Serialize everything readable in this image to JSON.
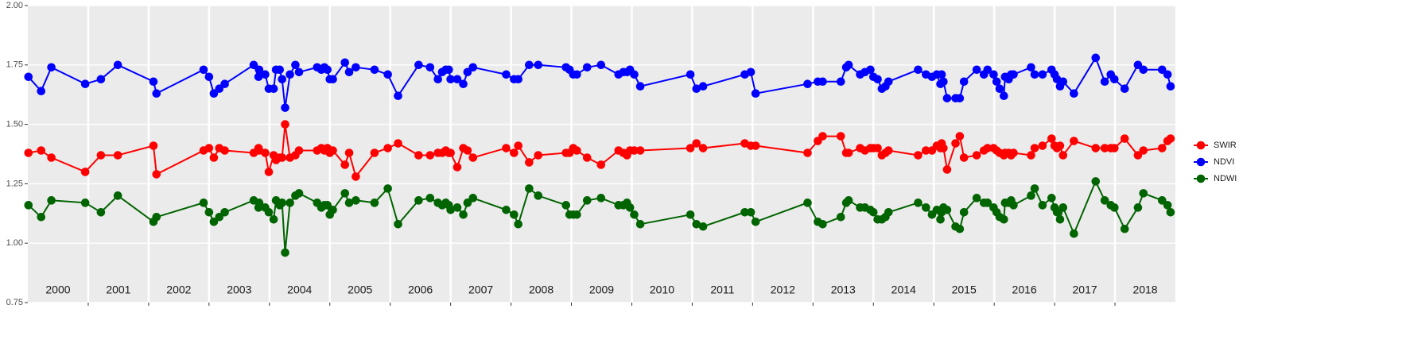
{
  "chart_data": {
    "type": "line",
    "x": [
      2000.01,
      2000.22,
      2000.39,
      2000.95,
      2001.21,
      2001.49,
      2002.08,
      2002.13,
      2002.91,
      2003.0,
      2003.08,
      2003.17,
      2003.26,
      2003.74,
      2003.82,
      2003.83,
      2003.93,
      2003.99,
      2004.07,
      2004.11,
      2004.17,
      2004.21,
      2004.26,
      2004.34,
      2004.43,
      2004.49,
      2004.79,
      2004.86,
      2004.91,
      2004.96,
      2005.0,
      2005.05,
      2005.25,
      2005.32,
      2005.43,
      2005.74,
      2005.96,
      2006.13,
      2006.47,
      2006.66,
      2006.79,
      2006.86,
      2006.92,
      2006.97,
      2007.0,
      2007.11,
      2007.21,
      2007.28,
      2007.37,
      2007.92,
      2008.05,
      2008.12,
      2008.3,
      2008.45,
      2008.91,
      2008.97,
      2009.03,
      2009.09,
      2009.26,
      2009.49,
      2009.78,
      2009.86,
      2009.92,
      2009.97,
      2010.04,
      2010.14,
      2010.97,
      2011.07,
      2011.18,
      2011.87,
      2011.97,
      2012.05,
      2012.91,
      2013.08,
      2013.16,
      2013.46,
      2013.55,
      2013.59,
      2013.78,
      2013.86,
      2013.95,
      2014.0,
      2014.07,
      2014.14,
      2014.2,
      2014.25,
      2014.74,
      2014.87,
      2014.97,
      2015.05,
      2015.11,
      2015.13,
      2015.16,
      2015.22,
      2015.36,
      2015.43,
      2015.5,
      2015.71,
      2015.83,
      2015.89,
      2015.99,
      2016.04,
      2016.09,
      2016.16,
      2016.18,
      2016.24,
      2016.28,
      2016.32,
      2016.61,
      2016.67,
      2016.8,
      2016.95,
      2017.0,
      2017.04,
      2017.09,
      2017.14,
      2017.32,
      2017.68,
      2017.83,
      2017.93,
      2017.99,
      2018.16,
      2018.38,
      2018.47,
      2018.78,
      2018.87,
      2018.92
    ],
    "series": [
      {
        "name": "SWIR",
        "color": "#ff0000",
        "values": [
          1.38,
          1.39,
          1.36,
          1.3,
          1.37,
          1.37,
          1.41,
          1.29,
          1.39,
          1.4,
          1.36,
          1.4,
          1.39,
          1.38,
          1.4,
          1.39,
          1.38,
          1.3,
          1.37,
          1.35,
          1.36,
          1.36,
          1.5,
          1.36,
          1.37,
          1.39,
          1.39,
          1.4,
          1.39,
          1.4,
          1.38,
          1.39,
          1.33,
          1.38,
          1.28,
          1.38,
          1.4,
          1.42,
          1.37,
          1.37,
          1.38,
          1.38,
          1.39,
          1.38,
          1.38,
          1.32,
          1.4,
          1.39,
          1.36,
          1.4,
          1.38,
          1.41,
          1.34,
          1.37,
          1.38,
          1.38,
          1.4,
          1.39,
          1.36,
          1.33,
          1.39,
          1.38,
          1.37,
          1.39,
          1.39,
          1.39,
          1.4,
          1.42,
          1.4,
          1.42,
          1.41,
          1.41,
          1.38,
          1.43,
          1.45,
          1.45,
          1.38,
          1.38,
          1.4,
          1.39,
          1.4,
          1.4,
          1.4,
          1.37,
          1.38,
          1.39,
          1.37,
          1.39,
          1.39,
          1.41,
          1.4,
          1.42,
          1.4,
          1.31,
          1.42,
          1.45,
          1.36,
          1.37,
          1.39,
          1.4,
          1.4,
          1.39,
          1.38,
          1.37,
          1.38,
          1.38,
          1.37,
          1.38,
          1.37,
          1.4,
          1.41,
          1.44,
          1.41,
          1.4,
          1.41,
          1.37,
          1.43,
          1.4,
          1.4,
          1.4,
          1.4,
          1.44,
          1.37,
          1.39,
          1.4,
          1.43,
          1.44
        ]
      },
      {
        "name": "NDVI",
        "color": "#0000ff",
        "values": [
          1.7,
          1.64,
          1.74,
          1.67,
          1.69,
          1.75,
          1.68,
          1.63,
          1.73,
          1.7,
          1.63,
          1.65,
          1.67,
          1.75,
          1.7,
          1.73,
          1.71,
          1.65,
          1.65,
          1.73,
          1.73,
          1.69,
          1.57,
          1.71,
          1.75,
          1.72,
          1.74,
          1.73,
          1.74,
          1.73,
          1.69,
          1.69,
          1.76,
          1.72,
          1.74,
          1.73,
          1.71,
          1.62,
          1.75,
          1.74,
          1.69,
          1.72,
          1.73,
          1.73,
          1.69,
          1.69,
          1.67,
          1.72,
          1.74,
          1.71,
          1.69,
          1.69,
          1.75,
          1.75,
          1.74,
          1.73,
          1.71,
          1.71,
          1.74,
          1.75,
          1.71,
          1.72,
          1.72,
          1.73,
          1.71,
          1.66,
          1.71,
          1.65,
          1.66,
          1.71,
          1.72,
          1.63,
          1.67,
          1.68,
          1.68,
          1.68,
          1.74,
          1.75,
          1.71,
          1.72,
          1.73,
          1.7,
          1.69,
          1.65,
          1.66,
          1.68,
          1.73,
          1.71,
          1.7,
          1.71,
          1.67,
          1.71,
          1.68,
          1.61,
          1.61,
          1.61,
          1.68,
          1.73,
          1.71,
          1.73,
          1.71,
          1.68,
          1.65,
          1.62,
          1.7,
          1.69,
          1.71,
          1.71,
          1.74,
          1.71,
          1.71,
          1.73,
          1.71,
          1.69,
          1.66,
          1.68,
          1.63,
          1.78,
          1.68,
          1.71,
          1.69,
          1.65,
          1.75,
          1.73,
          1.73,
          1.71,
          1.66
        ]
      },
      {
        "name": "NDWI",
        "color": "#006400",
        "values": [
          1.16,
          1.11,
          1.18,
          1.17,
          1.13,
          1.2,
          1.09,
          1.11,
          1.17,
          1.13,
          1.09,
          1.11,
          1.13,
          1.18,
          1.15,
          1.17,
          1.15,
          1.13,
          1.1,
          1.18,
          1.16,
          1.17,
          0.96,
          1.17,
          1.2,
          1.21,
          1.17,
          1.15,
          1.16,
          1.16,
          1.12,
          1.14,
          1.21,
          1.17,
          1.18,
          1.17,
          1.23,
          1.08,
          1.18,
          1.19,
          1.17,
          1.16,
          1.17,
          1.16,
          1.14,
          1.15,
          1.12,
          1.17,
          1.19,
          1.14,
          1.12,
          1.08,
          1.23,
          1.2,
          1.16,
          1.12,
          1.12,
          1.12,
          1.18,
          1.19,
          1.16,
          1.16,
          1.17,
          1.15,
          1.12,
          1.08,
          1.12,
          1.08,
          1.07,
          1.13,
          1.13,
          1.09,
          1.17,
          1.09,
          1.08,
          1.11,
          1.17,
          1.18,
          1.15,
          1.15,
          1.14,
          1.13,
          1.1,
          1.1,
          1.11,
          1.13,
          1.17,
          1.15,
          1.12,
          1.14,
          1.1,
          1.13,
          1.15,
          1.14,
          1.07,
          1.06,
          1.13,
          1.19,
          1.17,
          1.17,
          1.15,
          1.13,
          1.11,
          1.1,
          1.17,
          1.17,
          1.18,
          1.16,
          1.2,
          1.23,
          1.16,
          1.19,
          1.15,
          1.13,
          1.1,
          1.15,
          1.04,
          1.26,
          1.18,
          1.16,
          1.15,
          1.06,
          1.15,
          1.21,
          1.18,
          1.16,
          1.13
        ]
      }
    ],
    "xlim": [
      2000,
      2019
    ],
    "xticks": [
      2001,
      2002,
      2003,
      2004,
      2005,
      2006,
      2007,
      2008,
      2009,
      2010,
      2011,
      2012,
      2013,
      2014,
      2015,
      2016,
      2017,
      2018
    ],
    "year_labels": [
      2000,
      2001,
      2002,
      2003,
      2004,
      2005,
      2006,
      2007,
      2008,
      2009,
      2010,
      2011,
      2012,
      2013,
      2014,
      2015,
      2016,
      2017,
      2018
    ],
    "ylim": [
      0.75,
      2.0
    ],
    "yticks": [
      0.75,
      {
        "value": 1,
        "label": "1.00"
      },
      1.25,
      {
        "value": 1.5,
        "label": "1.50"
      },
      1.75,
      {
        "value": 2,
        "label": "2.00"
      }
    ],
    "grid": true,
    "legend": "right"
  }
}
